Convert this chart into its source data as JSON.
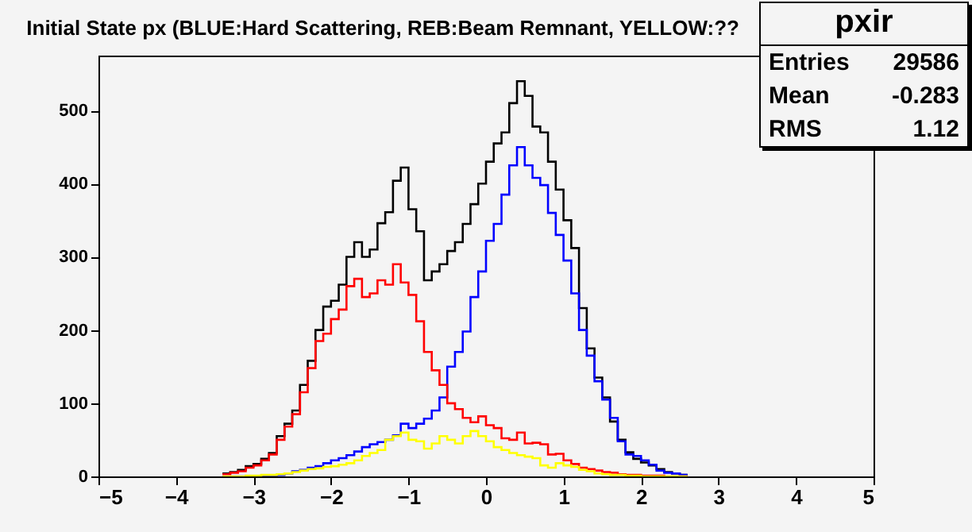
{
  "chart_data": {
    "type": "histogram",
    "title": "Initial State px (BLUE:Hard Scattering, REB:Beam Remnant, YELLOW:??",
    "bins": [
      -3.4,
      -3.3,
      -3.2,
      -3.1,
      -3.0,
      -2.9,
      -2.8,
      -2.7,
      -2.6,
      -2.5,
      -2.4,
      -2.3,
      -2.2,
      -2.1,
      -2.0,
      -1.9,
      -1.8,
      -1.7,
      -1.6,
      -1.5,
      -1.4,
      -1.3,
      -1.2,
      -1.1,
      -1.0,
      -0.9,
      -0.8,
      -0.7,
      -0.6,
      -0.5,
      -0.4,
      -0.3,
      -0.2,
      -0.1,
      0.0,
      0.1,
      0.2,
      0.3,
      0.4,
      0.5,
      0.6,
      0.7,
      0.8,
      0.9,
      1.0,
      1.1,
      1.2,
      1.3,
      1.4,
      1.5,
      1.6,
      1.7,
      1.8,
      1.9,
      2.0,
      2.1,
      2.2,
      2.3,
      2.4,
      2.5,
      2.6
    ],
    "series": [
      {
        "color": "#000000",
        "values": [
          4,
          6,
          9,
          14,
          17,
          24,
          32,
          55,
          72,
          90,
          125,
          158,
          200,
          232,
          240,
          262,
          300,
          320,
          300,
          310,
          346,
          361,
          404,
          422,
          365,
          335,
          268,
          280,
          290,
          308,
          320,
          345,
          372,
          400,
          430,
          455,
          470,
          510,
          540,
          520,
          478,
          470,
          430,
          392,
          350,
          312,
          230,
          175,
          135,
          108,
          75,
          50,
          33,
          24,
          19,
          15,
          10,
          6,
          4,
          2
        ]
      },
      {
        "color": "#0000ff",
        "values": [
          0,
          0,
          0,
          0,
          0,
          0,
          1,
          2,
          4,
          7,
          9,
          12,
          14,
          18,
          22,
          25,
          29,
          34,
          40,
          44,
          47,
          50,
          56,
          72,
          66,
          72,
          79,
          90,
          108,
          150,
          170,
          198,
          245,
          280,
          322,
          345,
          385,
          425,
          450,
          425,
          408,
          398,
          360,
          330,
          295,
          250,
          200,
          165,
          130,
          105,
          80,
          48,
          30,
          28,
          22,
          16,
          8,
          5,
          4,
          2
        ]
      },
      {
        "color": "#ff0000",
        "values": [
          3,
          5,
          7,
          12,
          15,
          22,
          30,
          50,
          68,
          85,
          115,
          148,
          185,
          195,
          215,
          228,
          260,
          270,
          245,
          250,
          268,
          262,
          290,
          265,
          248,
          212,
          170,
          145,
          125,
          100,
          92,
          80,
          74,
          82,
          70,
          66,
          52,
          50,
          60,
          45,
          46,
          44,
          30,
          31,
          22,
          17,
          12,
          10,
          8,
          6,
          5,
          3,
          2,
          2,
          1,
          1,
          1,
          0,
          0,
          0
        ]
      },
      {
        "color": "#ffff00",
        "values": [
          0,
          0,
          0,
          1,
          1,
          2,
          2,
          3,
          4,
          6,
          8,
          10,
          11,
          13,
          14,
          16,
          18,
          22,
          28,
          32,
          36,
          50,
          55,
          60,
          50,
          48,
          38,
          45,
          55,
          50,
          45,
          55,
          62,
          55,
          48,
          40,
          36,
          32,
          29,
          27,
          25,
          15,
          12,
          18,
          15,
          13,
          9,
          7,
          4,
          3,
          2,
          2,
          1,
          1,
          0,
          0,
          0,
          0,
          0,
          0
        ]
      }
    ],
    "xlim": [
      -5,
      5
    ],
    "xticks": [
      -5,
      -4,
      -3,
      -2,
      -1,
      0,
      1,
      2,
      3,
      4,
      5
    ],
    "ylim": [
      0,
      575
    ],
    "yticks": [
      0,
      100,
      200,
      300,
      400,
      500
    ],
    "annotations": [
      "pxir",
      "Entries",
      "29586",
      "Mean",
      "-0.283",
      "RMS",
      "1.12"
    ]
  }
}
